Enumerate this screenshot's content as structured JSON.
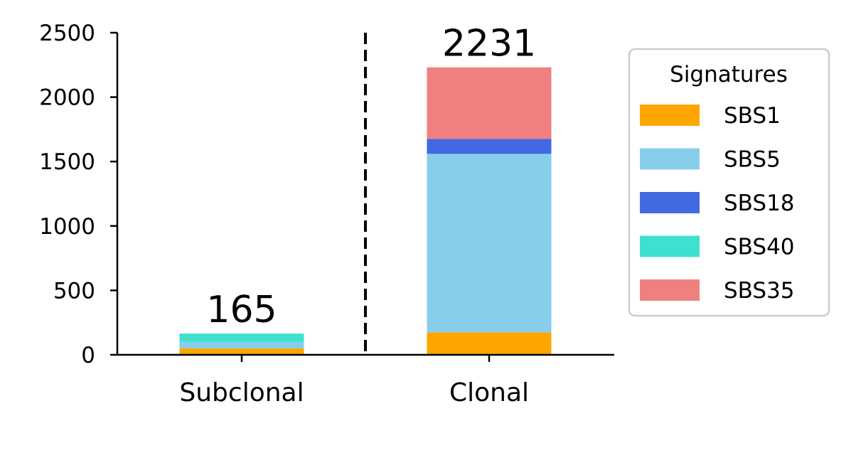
{
  "chart_data": {
    "type": "bar",
    "stacked": true,
    "categories": [
      "Subclonal",
      "Clonal"
    ],
    "series": [
      {
        "name": "SBS1",
        "color": "#FFA500",
        "values": [
          50,
          175
        ]
      },
      {
        "name": "SBS5",
        "color": "#87CEEB",
        "values": [
          50,
          1385
        ]
      },
      {
        "name": "SBS18",
        "color": "#4169E1",
        "values": [
          0,
          115
        ]
      },
      {
        "name": "SBS40",
        "color": "#40E0D0",
        "values": [
          65,
          0
        ]
      },
      {
        "name": "SBS35",
        "color": "#F08080",
        "values": [
          0,
          556
        ]
      }
    ],
    "totals": [
      "165",
      "2231"
    ],
    "y_ticks": [
      0,
      500,
      1000,
      1500,
      2000,
      2500
    ],
    "ylim": [
      0,
      2500
    ],
    "legend": {
      "title": "Signatures",
      "position": "right"
    },
    "divider": "dashed vertical line between categories",
    "grid": false
  }
}
